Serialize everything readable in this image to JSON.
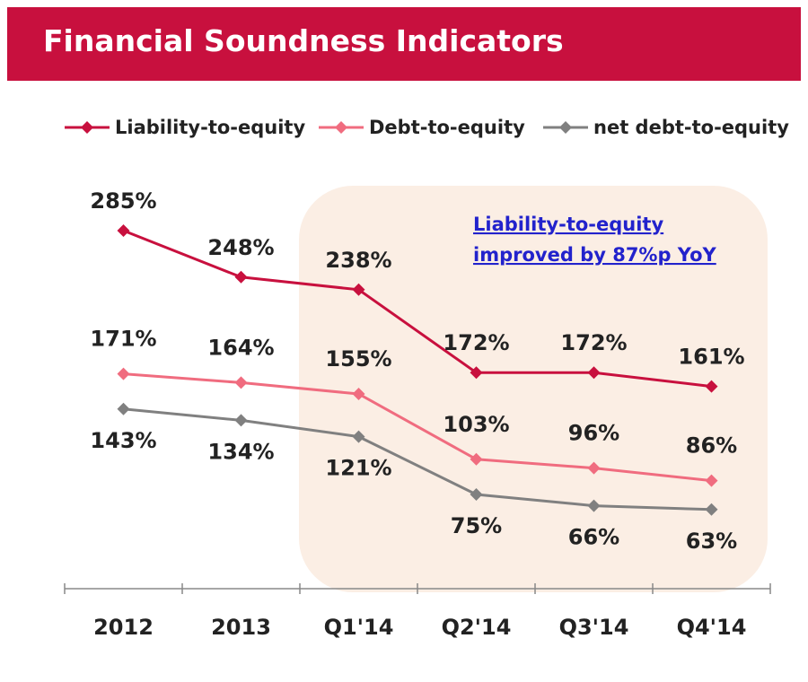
{
  "chart_data": {
    "type": "line",
    "title": "Financial Soundness Indicators",
    "annotation": [
      "Liability-to-equity",
      "improved by 87%p YoY"
    ],
    "categories": [
      "2012",
      "2013",
      "Q1'14",
      "Q2'14",
      "Q3'14",
      "Q4'14"
    ],
    "ylim": [
      0,
      300
    ],
    "grid": false,
    "legend": "top",
    "series": [
      {
        "name": "Liability-to-equity",
        "color": "#c8103e",
        "values": [
          285,
          248,
          238,
          172,
          172,
          161
        ],
        "value_labels": [
          "285%",
          "248%",
          "238%",
          "172%",
          "172%",
          "161%"
        ]
      },
      {
        "name": "Debt-to-equity",
        "color": "#f06c7f",
        "values": [
          171,
          164,
          155,
          103,
          96,
          86
        ],
        "value_labels": [
          "171%",
          "164%",
          "155%",
          "103%",
          "96%",
          "86%"
        ]
      },
      {
        "name": "net debt-to-equity",
        "color": "#808080",
        "values": [
          143,
          134,
          121,
          75,
          66,
          63
        ],
        "value_labels": [
          "143%",
          "134%",
          "121%",
          "75%",
          "66%",
          "63%"
        ]
      }
    ]
  }
}
